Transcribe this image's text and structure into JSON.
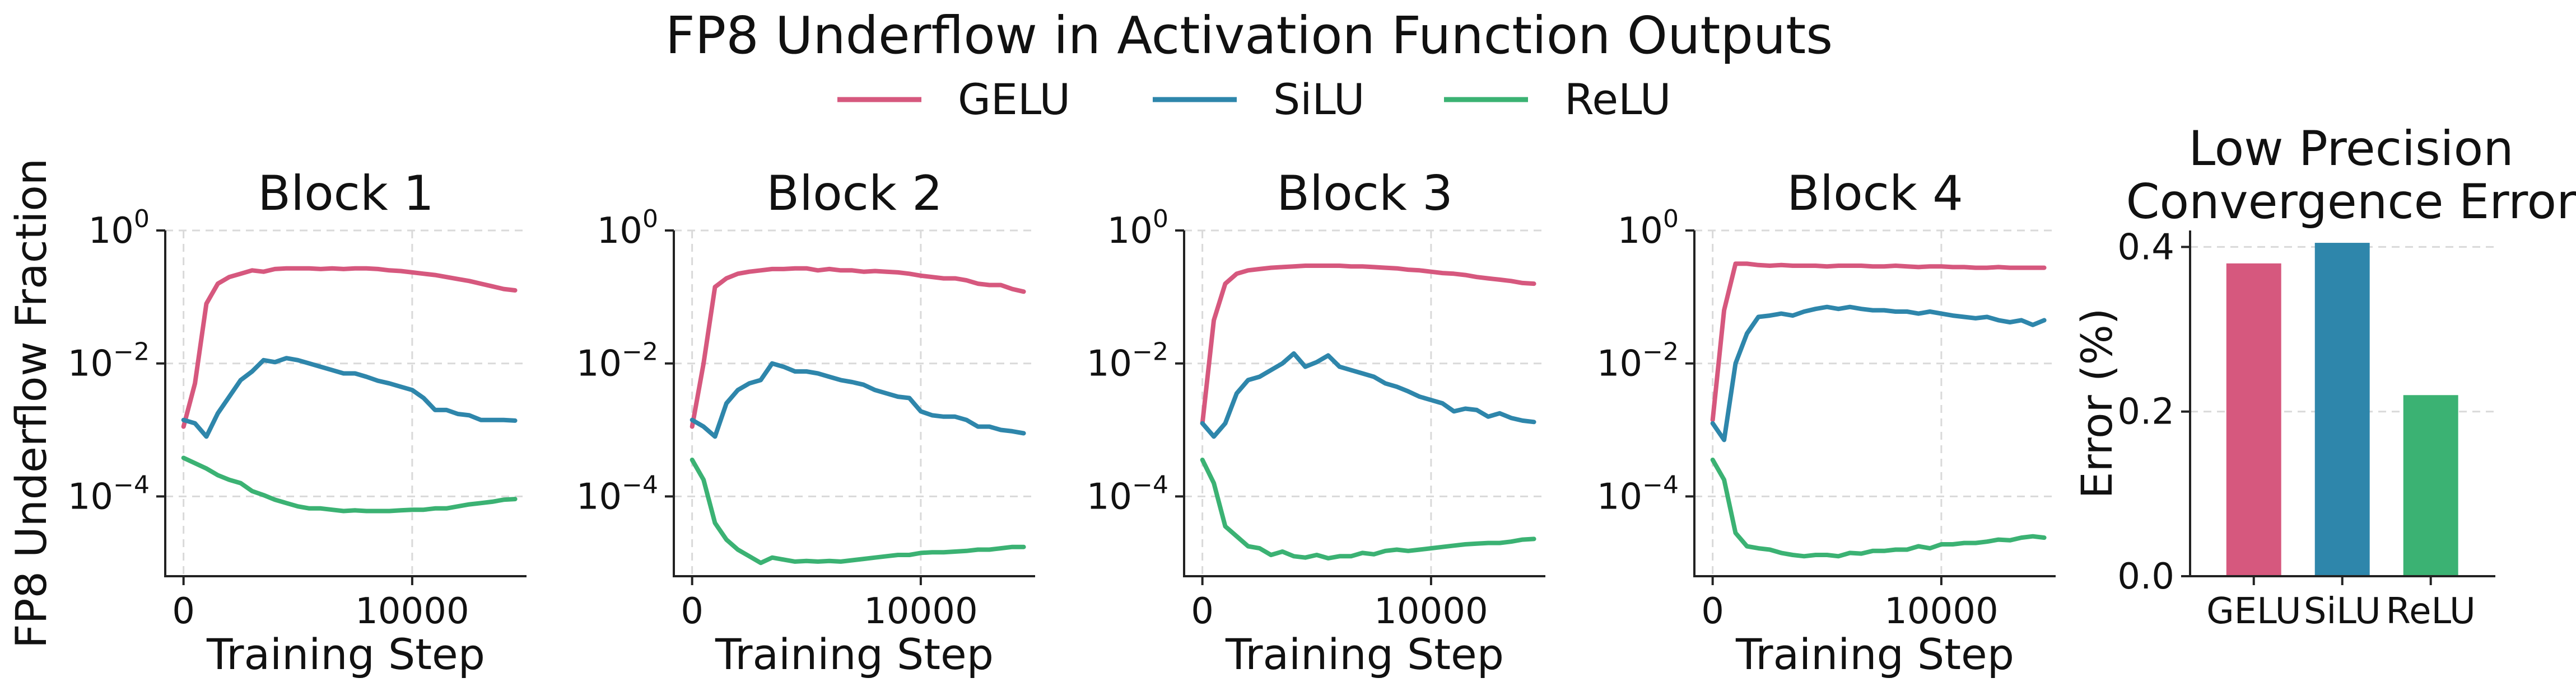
{
  "chart_data": {
    "title": "FP8 Underflow in Activation Function Outputs",
    "legend": [
      {
        "name": "GELU",
        "color": "#d6587e"
      },
      {
        "name": "SiLU",
        "color": "#2e86ab"
      },
      {
        "name": "ReLU",
        "color": "#3bb273"
      }
    ],
    "line_panels": [
      {
        "type": "line",
        "title": "Block 1",
        "xlabel": "Training Step",
        "ylabel": "FP8 Underflow Fraction",
        "yscale": "log",
        "xlim": [
          -800,
          15000
        ],
        "ylim_log10": [
          -5.2,
          0
        ],
        "xticks": [
          0,
          10000
        ],
        "xtick_labels": [
          "0",
          "10000"
        ],
        "yticks_log10": [
          0,
          -2,
          -4
        ],
        "ytick_labels": [
          {
            "base": "10",
            "exp": "0"
          },
          {
            "base": "10",
            "exp": "−2"
          },
          {
            "base": "10",
            "exp": "−4"
          }
        ],
        "x": [
          0,
          500,
          1000,
          1500,
          2000,
          2500,
          3000,
          3500,
          4000,
          4500,
          5000,
          5500,
          6000,
          6500,
          7000,
          7500,
          8000,
          8500,
          9000,
          9500,
          10000,
          10500,
          11000,
          11500,
          12000,
          12500,
          13000,
          13500,
          14000,
          14500
        ],
        "series": [
          {
            "name": "GELU",
            "values_log10": [
              -2.95,
              -2.3,
              -1.1,
              -0.8,
              -0.7,
              -0.65,
              -0.6,
              -0.62,
              -0.58,
              -0.57,
              -0.57,
              -0.57,
              -0.58,
              -0.57,
              -0.58,
              -0.57,
              -0.57,
              -0.58,
              -0.6,
              -0.61,
              -0.63,
              -0.65,
              -0.67,
              -0.7,
              -0.73,
              -0.76,
              -0.8,
              -0.84,
              -0.88,
              -0.9
            ]
          },
          {
            "name": "SiLU",
            "values_log10": [
              -2.85,
              -2.9,
              -3.1,
              -2.75,
              -2.5,
              -2.25,
              -2.12,
              -1.95,
              -1.98,
              -1.92,
              -1.95,
              -2.0,
              -2.05,
              -2.1,
              -2.15,
              -2.15,
              -2.2,
              -2.26,
              -2.3,
              -2.35,
              -2.4,
              -2.52,
              -2.7,
              -2.7,
              -2.76,
              -2.78,
              -2.85,
              -2.85,
              -2.85,
              -2.86
            ]
          },
          {
            "name": "ReLU",
            "values_log10": [
              -3.42,
              -3.5,
              -3.58,
              -3.68,
              -3.75,
              -3.8,
              -3.92,
              -3.98,
              -4.05,
              -4.1,
              -4.15,
              -4.18,
              -4.18,
              -4.2,
              -4.22,
              -4.21,
              -4.22,
              -4.22,
              -4.22,
              -4.21,
              -4.2,
              -4.2,
              -4.18,
              -4.18,
              -4.15,
              -4.12,
              -4.1,
              -4.08,
              -4.05,
              -4.04
            ]
          }
        ]
      },
      {
        "type": "line",
        "title": "Block 2",
        "xlabel": "Training Step",
        "yscale": "log",
        "xlim": [
          -800,
          15000
        ],
        "ylim_log10": [
          -5.2,
          0
        ],
        "xticks": [
          0,
          10000
        ],
        "xtick_labels": [
          "0",
          "10000"
        ],
        "yticks_log10": [
          0,
          -2,
          -4
        ],
        "ytick_labels": [
          {
            "base": "10",
            "exp": "0"
          },
          {
            "base": "10",
            "exp": "−2"
          },
          {
            "base": "10",
            "exp": "−4"
          }
        ],
        "x": [
          0,
          500,
          1000,
          1500,
          2000,
          2500,
          3000,
          3500,
          4000,
          4500,
          5000,
          5500,
          6000,
          6500,
          7000,
          7500,
          8000,
          8500,
          9000,
          9500,
          10000,
          10500,
          11000,
          11500,
          12000,
          12500,
          13000,
          13500,
          14000,
          14500
        ],
        "series": [
          {
            "name": "GELU",
            "values_log10": [
              -2.95,
              -2.0,
              -0.85,
              -0.72,
              -0.65,
              -0.62,
              -0.6,
              -0.58,
              -0.58,
              -0.57,
              -0.57,
              -0.6,
              -0.58,
              -0.6,
              -0.6,
              -0.62,
              -0.61,
              -0.62,
              -0.63,
              -0.65,
              -0.68,
              -0.7,
              -0.72,
              -0.72,
              -0.75,
              -0.8,
              -0.82,
              -0.82,
              -0.88,
              -0.92
            ]
          },
          {
            "name": "SiLU",
            "values_log10": [
              -2.85,
              -2.95,
              -3.1,
              -2.6,
              -2.4,
              -2.3,
              -2.25,
              -2.0,
              -2.05,
              -2.12,
              -2.12,
              -2.15,
              -2.2,
              -2.25,
              -2.28,
              -2.32,
              -2.4,
              -2.45,
              -2.5,
              -2.52,
              -2.72,
              -2.78,
              -2.8,
              -2.8,
              -2.85,
              -2.95,
              -2.95,
              -3.0,
              -3.02,
              -3.05
            ]
          },
          {
            "name": "ReLU",
            "values_log10": [
              -3.45,
              -3.75,
              -4.4,
              -4.65,
              -4.8,
              -4.9,
              -5.0,
              -4.92,
              -4.95,
              -4.98,
              -4.97,
              -4.98,
              -4.97,
              -4.98,
              -4.96,
              -4.94,
              -4.92,
              -4.9,
              -4.88,
              -4.88,
              -4.85,
              -4.84,
              -4.84,
              -4.83,
              -4.82,
              -4.8,
              -4.8,
              -4.78,
              -4.76,
              -4.76
            ]
          }
        ]
      },
      {
        "type": "line",
        "title": "Block 3",
        "xlabel": "Training Step",
        "yscale": "log",
        "xlim": [
          -800,
          15000
        ],
        "ylim_log10": [
          -5.2,
          0
        ],
        "xticks": [
          0,
          10000
        ],
        "xtick_labels": [
          "0",
          "10000"
        ],
        "yticks_log10": [
          0,
          -2,
          -4
        ],
        "ytick_labels": [
          {
            "base": "10",
            "exp": "0"
          },
          {
            "base": "10",
            "exp": "−2"
          },
          {
            "base": "10",
            "exp": "−4"
          }
        ],
        "x": [
          0,
          500,
          1000,
          1500,
          2000,
          2500,
          3000,
          3500,
          4000,
          4500,
          5000,
          5500,
          6000,
          6500,
          7000,
          7500,
          8000,
          8500,
          9000,
          9500,
          10000,
          10500,
          11000,
          11500,
          12000,
          12500,
          13000,
          13500,
          14000,
          14500
        ],
        "series": [
          {
            "name": "GELU",
            "values_log10": [
              -2.9,
              -1.35,
              -0.8,
              -0.65,
              -0.6,
              -0.58,
              -0.56,
              -0.55,
              -0.54,
              -0.53,
              -0.53,
              -0.53,
              -0.53,
              -0.54,
              -0.54,
              -0.55,
              -0.56,
              -0.57,
              -0.59,
              -0.6,
              -0.62,
              -0.64,
              -0.65,
              -0.67,
              -0.7,
              -0.72,
              -0.74,
              -0.76,
              -0.79,
              -0.8
            ]
          },
          {
            "name": "SiLU",
            "values_log10": [
              -2.9,
              -3.1,
              -2.9,
              -2.45,
              -2.25,
              -2.2,
              -2.1,
              -2.0,
              -1.85,
              -2.05,
              -1.98,
              -1.88,
              -2.05,
              -2.1,
              -2.15,
              -2.2,
              -2.3,
              -2.35,
              -2.42,
              -2.5,
              -2.55,
              -2.6,
              -2.72,
              -2.68,
              -2.7,
              -2.8,
              -2.75,
              -2.82,
              -2.86,
              -2.88
            ]
          },
          {
            "name": "ReLU",
            "values_log10": [
              -3.45,
              -3.8,
              -4.45,
              -4.6,
              -4.75,
              -4.78,
              -4.88,
              -4.83,
              -4.9,
              -4.92,
              -4.88,
              -4.93,
              -4.9,
              -4.9,
              -4.85,
              -4.87,
              -4.82,
              -4.8,
              -4.82,
              -4.8,
              -4.78,
              -4.76,
              -4.74,
              -4.72,
              -4.71,
              -4.7,
              -4.7,
              -4.68,
              -4.65,
              -4.64
            ]
          }
        ]
      },
      {
        "type": "line",
        "title": "Block 4",
        "xlabel": "Training Step",
        "yscale": "log",
        "xlim": [
          -800,
          15000
        ],
        "ylim_log10": [
          -5.2,
          0
        ],
        "xticks": [
          0,
          10000
        ],
        "xtick_labels": [
          "0",
          "10000"
        ],
        "yticks_log10": [
          0,
          -2,
          -4
        ],
        "ytick_labels": [
          {
            "base": "10",
            "exp": "0"
          },
          {
            "base": "10",
            "exp": "−2"
          },
          {
            "base": "10",
            "exp": "−4"
          }
        ],
        "x": [
          0,
          500,
          1000,
          1500,
          2000,
          2500,
          3000,
          3500,
          4000,
          4500,
          5000,
          5500,
          6000,
          6500,
          7000,
          7500,
          8000,
          8500,
          9000,
          9500,
          10000,
          10500,
          11000,
          11500,
          12000,
          12500,
          13000,
          13500,
          14000,
          14500
        ],
        "series": [
          {
            "name": "GELU",
            "values_log10": [
              -2.85,
              -1.2,
              -0.5,
              -0.5,
              -0.52,
              -0.53,
              -0.52,
              -0.53,
              -0.53,
              -0.53,
              -0.54,
              -0.53,
              -0.53,
              -0.53,
              -0.54,
              -0.54,
              -0.53,
              -0.54,
              -0.55,
              -0.54,
              -0.54,
              -0.55,
              -0.55,
              -0.56,
              -0.56,
              -0.55,
              -0.56,
              -0.56,
              -0.56,
              -0.56
            ]
          },
          {
            "name": "SiLU",
            "values_log10": [
              -2.9,
              -3.15,
              -2.0,
              -1.55,
              -1.3,
              -1.28,
              -1.25,
              -1.28,
              -1.22,
              -1.18,
              -1.15,
              -1.18,
              -1.15,
              -1.18,
              -1.2,
              -1.2,
              -1.22,
              -1.22,
              -1.25,
              -1.22,
              -1.25,
              -1.28,
              -1.3,
              -1.32,
              -1.3,
              -1.35,
              -1.38,
              -1.35,
              -1.42,
              -1.35
            ]
          },
          {
            "name": "ReLU",
            "values_log10": [
              -3.45,
              -3.75,
              -4.55,
              -4.75,
              -4.78,
              -4.8,
              -4.85,
              -4.88,
              -4.9,
              -4.88,
              -4.88,
              -4.9,
              -4.85,
              -4.86,
              -4.82,
              -4.82,
              -4.8,
              -4.8,
              -4.75,
              -4.78,
              -4.72,
              -4.72,
              -4.7,
              -4.7,
              -4.68,
              -4.65,
              -4.66,
              -4.62,
              -4.6,
              -4.62
            ]
          }
        ]
      }
    ],
    "bar_panel": {
      "type": "bar",
      "title_lines": [
        "Low Precision",
        "Convergence Error"
      ],
      "ylabel": "Error (%)",
      "categories": [
        "GELU",
        "SiLU",
        "ReLU"
      ],
      "values": [
        0.38,
        0.405,
        0.22
      ],
      "colors": [
        "#d6587e",
        "#2e86ab",
        "#3bb273"
      ],
      "ylim": [
        0,
        0.42
      ],
      "yticks": [
        0.0,
        0.2,
        0.4
      ],
      "ytick_labels": [
        "0.0",
        "0.2",
        "0.4"
      ]
    }
  }
}
